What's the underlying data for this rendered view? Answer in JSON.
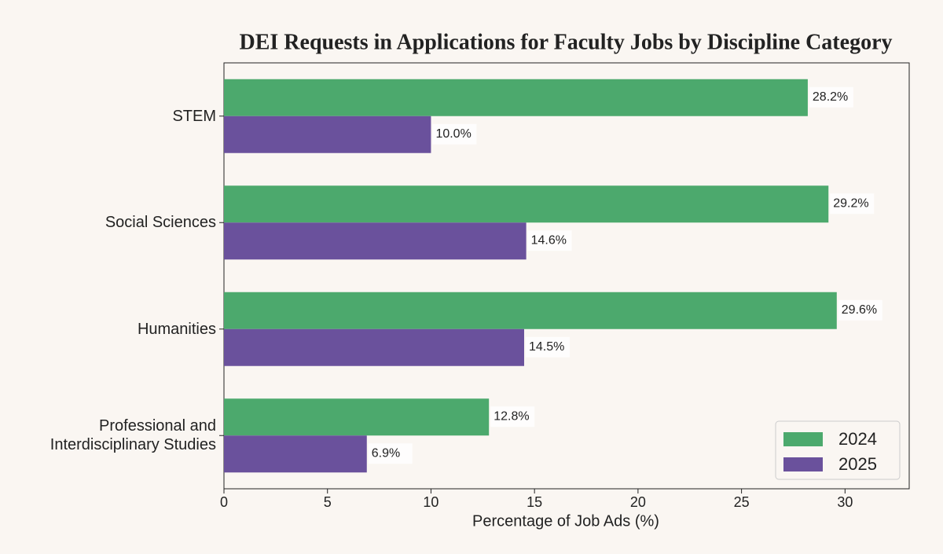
{
  "chart_data": {
    "type": "barh",
    "title": "DEI Requests in Applications for Faculty Jobs by Discipline Category",
    "x_label": "Percentage of Job Ads (%)",
    "categories": [
      "STEM",
      "Social Sciences",
      "Humanities",
      "Professional and\nInterdisciplinary Studies"
    ],
    "series": [
      {
        "name": "2024",
        "color": "#4ca96d",
        "values": [
          28.2,
          29.2,
          29.6,
          12.8
        ],
        "value_labels": [
          "28.2%",
          "29.2%",
          "29.6%",
          "12.8%"
        ]
      },
      {
        "name": "2025",
        "color": "#6a519c",
        "values": [
          10.0,
          14.6,
          14.5,
          6.9
        ],
        "value_labels": [
          "10.0%",
          "14.6%",
          "14.5%",
          "6.9%"
        ]
      }
    ],
    "xlim": [
      0,
      33.1
    ],
    "xticks": [
      0,
      5,
      10,
      15,
      20,
      25,
      30
    ],
    "legend": "lower right"
  }
}
